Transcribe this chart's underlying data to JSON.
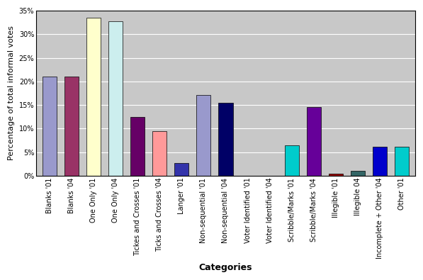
{
  "categories": [
    "Blanks '01",
    "Blanks '04",
    "One Only '01",
    "One Only '04",
    "Tickes and Crosses '01",
    "Ticks and Crosses '04",
    "Langer '01",
    "Non-sequential '01",
    "Non-sequential '04",
    "Voter Identified '01",
    "Voter Identified '04",
    "Scribble/Marks '01",
    "Scribble/Marks '04",
    "Illegible '01",
    "Illegible 04",
    "Incomplete + Other '04",
    "Other '01"
  ],
  "values": [
    21.0,
    21.0,
    33.5,
    32.7,
    12.5,
    9.5,
    2.7,
    17.2,
    15.5,
    0.0,
    0.0,
    6.5,
    14.5,
    0.5,
    1.0,
    6.2,
    6.1
  ],
  "colors": [
    "#9999cc",
    "#993366",
    "#ffffcc",
    "#cceeee",
    "#660066",
    "#ff9999",
    "#3333aa",
    "#9999cc",
    "#000066",
    "#ffffff",
    "#ffffff",
    "#00cccc",
    "#660099",
    "#990000",
    "#336666",
    "#0000cc",
    "#00cccc"
  ],
  "ylabel": "Percentage of total informal votes",
  "xlabel": "Categories",
  "ylim": [
    0,
    35
  ],
  "yticks": [
    0,
    5,
    10,
    15,
    20,
    25,
    30,
    35
  ],
  "ytick_labels": [
    "0%",
    "5%",
    "10%",
    "15%",
    "20%",
    "25%",
    "30%",
    "35%"
  ],
  "fig_bg_color": "#ffffff",
  "plot_bg_color": "#c8c8c8",
  "grid_color": "#ffffff",
  "border_color": "#000000",
  "axis_label_fontsize": 8,
  "tick_fontsize": 7,
  "xlabel_fontsize": 9,
  "bar_edge_color": "#000000",
  "bar_edge_width": 0.5,
  "bar_width": 0.65
}
